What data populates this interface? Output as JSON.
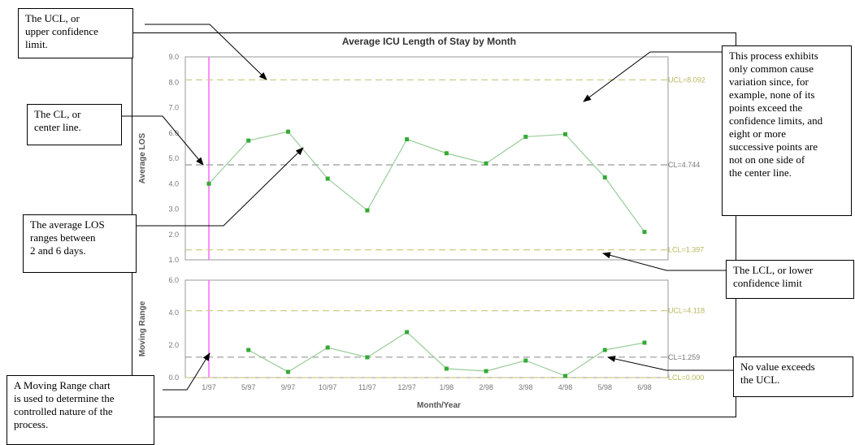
{
  "chart_data": [
    {
      "type": "line",
      "title": "Average ICU Length of Stay by Month",
      "ylabel": "Average LOS",
      "xlabel": "",
      "ylim": [
        1.0,
        9.0
      ],
      "yticks": [
        "1.0",
        "2.0",
        "3.0",
        "4.0",
        "5.0",
        "6.0",
        "7.0",
        "8.0",
        "9.0"
      ],
      "categories": [
        "1/97",
        "5/97",
        "9/97",
        "10/97",
        "11/97",
        "12/97",
        "1/98",
        "2/98",
        "3/98",
        "4/98",
        "5/98",
        "6/98"
      ],
      "values": [
        4.0,
        5.7,
        6.05,
        4.2,
        2.95,
        5.75,
        5.2,
        4.8,
        5.85,
        5.95,
        4.25,
        2.1
      ],
      "limits": [
        {
          "name": "UCL",
          "value": 8.092,
          "label": "UCL=8.092",
          "color": "#cccc88"
        },
        {
          "name": "CL",
          "value": 4.744,
          "label": "CL=4.744",
          "color": "#999999"
        },
        {
          "name": "LCL",
          "value": 1.397,
          "label": "LCL=1.397",
          "color": "#cccc88"
        }
      ],
      "series_color": "#99cc99",
      "marker_color": "#33aa33",
      "grid": false
    },
    {
      "type": "line",
      "title": "",
      "ylabel": "Moving Range",
      "xlabel": "Month/Year",
      "ylim": [
        0.0,
        6.0
      ],
      "yticks": [
        "0.0",
        "2.0",
        "4.0",
        "6.0"
      ],
      "categories": [
        "1/97",
        "5/97",
        "9/97",
        "10/97",
        "11/97",
        "12/97",
        "1/98",
        "2/98",
        "3/98",
        "4/98",
        "5/98",
        "6/98"
      ],
      "values": [
        null,
        1.7,
        0.35,
        1.85,
        1.25,
        2.8,
        0.55,
        0.4,
        1.05,
        0.1,
        1.7,
        2.15
      ],
      "limits": [
        {
          "name": "UCL",
          "value": 4.118,
          "label": "UCL=4.118",
          "color": "#cccc88"
        },
        {
          "name": "CL",
          "value": 1.259,
          "label": "CL=1.259",
          "color": "#999999"
        },
        {
          "name": "LCL",
          "value": 0.0,
          "label": "LCL=0.000",
          "color": "#cccc88"
        }
      ],
      "series_color": "#99cc99",
      "marker_color": "#33aa33",
      "grid": false
    }
  ],
  "callouts": {
    "ucl": "The UCL, or\nupper confidence\nlimit.",
    "cl": "The CL, or\ncenter line.",
    "avg_los": "The average LOS\nranges between\n2 and 6 days.",
    "moving_range": "A Moving Range chart\nis used to determine the\ncontrolled nature of the\nprocess.",
    "common_cause": "This process exhibits\nonly common cause\nvariation since, for\nexample, none of its\npoints exceed the\nconfidence limits, and\neight or more\nsuccessive points are\nnot on one side of\nthe center line.",
    "lcl": "The LCL, or lower\nconfidence limit",
    "no_value": "No value exceeds\nthe UCL."
  },
  "colors": {
    "marker_line": "#ff66ff",
    "plot_border": "#999999"
  }
}
